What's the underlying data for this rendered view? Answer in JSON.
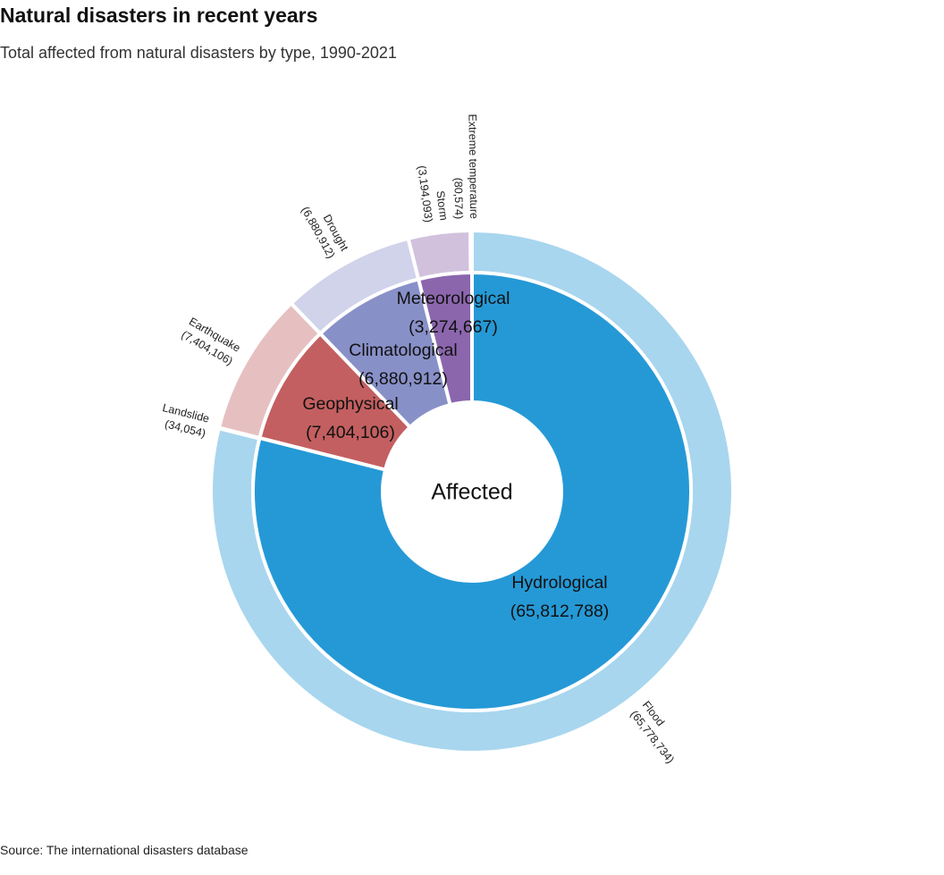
{
  "title": "Natural disasters in recent years",
  "subtitle": "Total affected from natural disasters by type, 1990-2021",
  "source": "Source: The international disasters database",
  "chart_data": {
    "type": "pie",
    "variant": "nested-donut",
    "center_label": "Affected",
    "inner": [
      {
        "name": "Hydrological",
        "value": 65812788,
        "label": "(65,812,788)",
        "color": "#2599d6"
      },
      {
        "name": "Geophysical",
        "value": 7404106,
        "label": "(7,404,106)",
        "color": "#c35f60"
      },
      {
        "name": "Climatological",
        "value": 6880912,
        "label": "(6,880,912)",
        "color": "#8890c8"
      },
      {
        "name": "Meteorological",
        "value": 3274667,
        "label": "(3,274,667)",
        "color": "#8b66ad"
      }
    ],
    "outer": [
      {
        "name": "Flood",
        "value": 65778734,
        "label": "(65,778,734)",
        "color": "#a8d6ee"
      },
      {
        "name": "Landslide",
        "value": 34054,
        "label": "(34,054)",
        "color": "#a8d6ee"
      },
      {
        "name": "Earthquake",
        "value": 7404106,
        "label": "(7,404,106)",
        "color": "#e6c0c0"
      },
      {
        "name": "Drought",
        "value": 6880912,
        "label": "(6,880,912)",
        "color": "#d0d3ea"
      },
      {
        "name": "Storm",
        "value": 3194093,
        "label": "(3,194,093)",
        "color": "#d2c1dd"
      },
      {
        "name": "Extreme temperature",
        "value": 80574,
        "label": "(80,574)",
        "color": "#d2c1dd"
      }
    ]
  }
}
